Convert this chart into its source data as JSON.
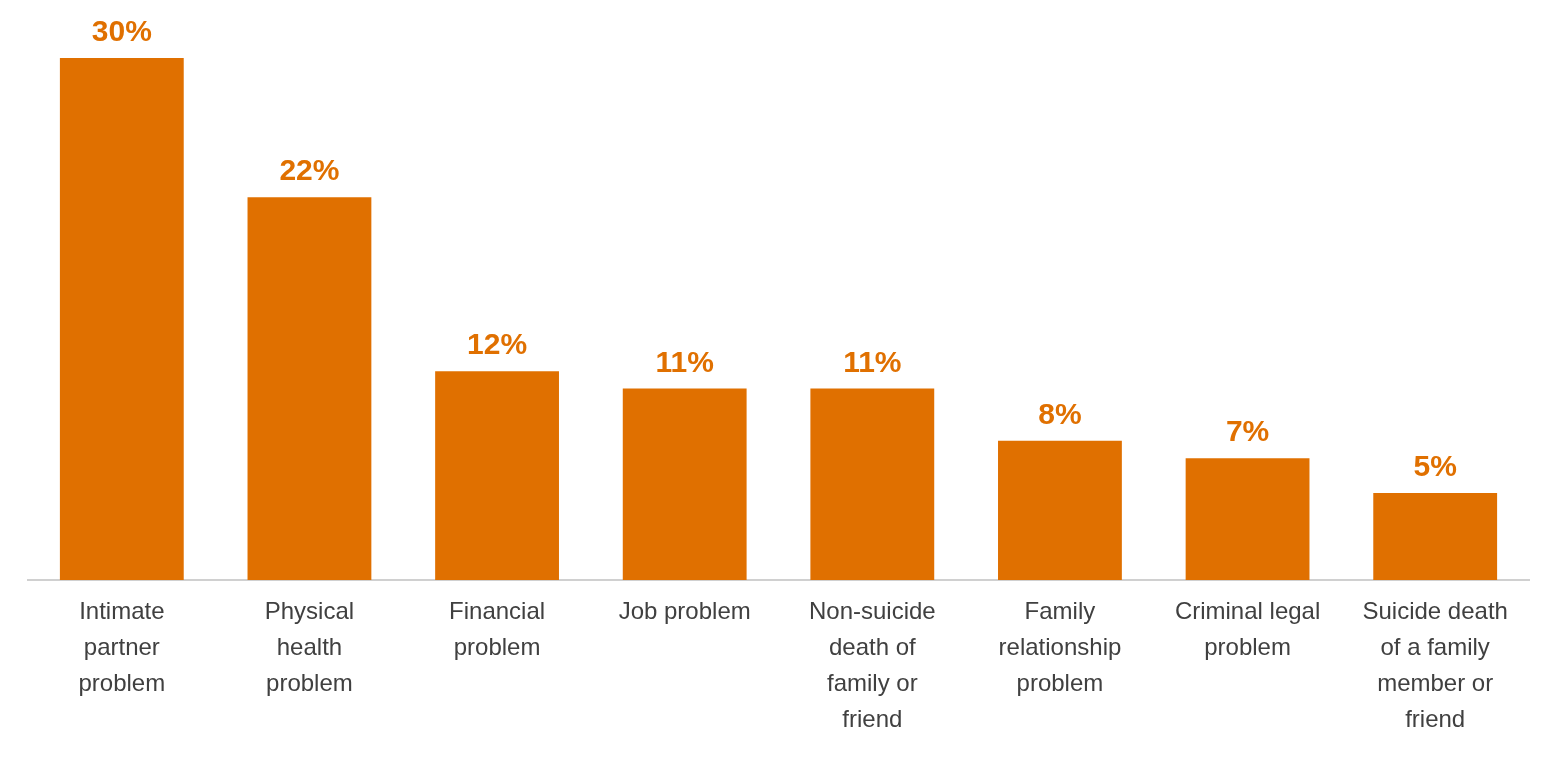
{
  "chart_data": {
    "type": "bar",
    "categories": [
      "Intimate partner problem",
      "Physical health problem",
      "Financial problem",
      "Job problem",
      "Non-suicide death of family or friend",
      "Family relationship problem",
      "Criminal legal problem",
      "Suicide death of a family member or friend"
    ],
    "values": [
      30,
      22,
      12,
      11,
      11,
      8,
      7,
      5
    ],
    "value_labels": [
      "30%",
      "22%",
      "12%",
      "11%",
      "11%",
      "8%",
      "7%",
      "5%"
    ],
    "color": "#e07000",
    "tick_labels": "x",
    "grid": false,
    "legend": false
  }
}
